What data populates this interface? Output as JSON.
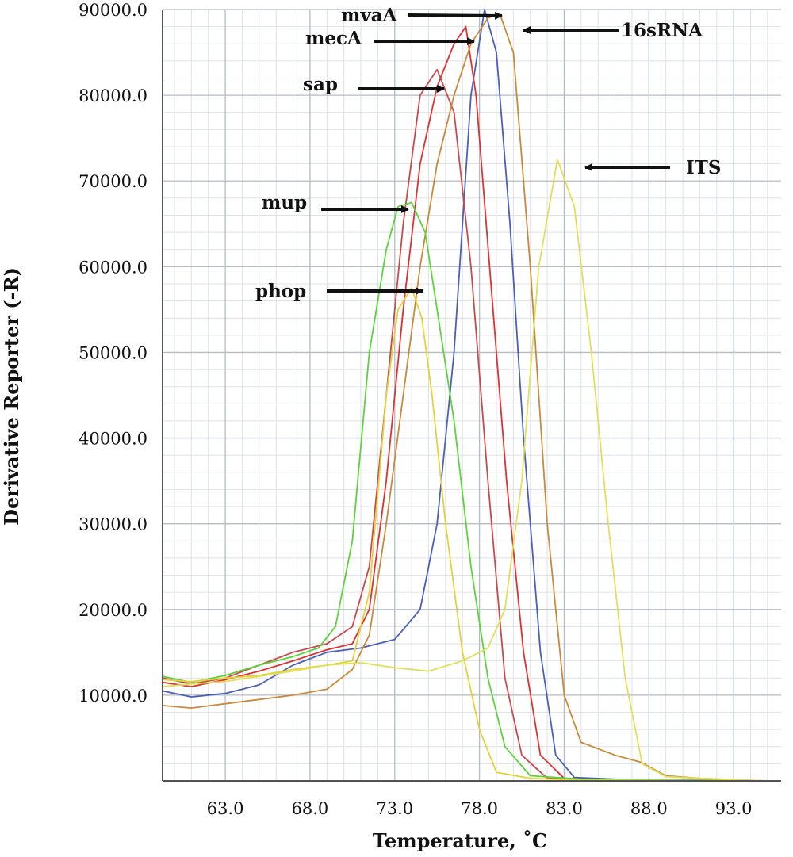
{
  "chart_data": {
    "type": "line",
    "xlabel": "Temperature, ˚C",
    "ylabel": "Derivative Reporter (-R)",
    "xlim": [
      59.3,
      95.8
    ],
    "ylim": [
      0,
      90000
    ],
    "x_ticks": [
      "63.0",
      "68.0",
      "73.0",
      "78.0",
      "83.0",
      "88.0",
      "93.0"
    ],
    "x_tick_values": [
      63,
      68,
      73,
      78,
      83,
      88,
      93
    ],
    "y_ticks": [
      "10000.0",
      "20000.0",
      "30000.0",
      "40000.0",
      "50000.0",
      "60000.0",
      "70000.0",
      "80000.0",
      "90000.0"
    ],
    "y_tick_values": [
      10000,
      20000,
      30000,
      40000,
      50000,
      60000,
      70000,
      80000,
      90000
    ],
    "grid": true,
    "series": [
      {
        "name": "mvaA",
        "color": "#4a5fb8",
        "points": [
          [
            59.3,
            10500
          ],
          [
            61,
            9800
          ],
          [
            63,
            10200
          ],
          [
            65,
            11200
          ],
          [
            67,
            13500
          ],
          [
            69,
            15000
          ],
          [
            71,
            15500
          ],
          [
            73,
            16500
          ],
          [
            74.5,
            20000
          ],
          [
            75.5,
            30000
          ],
          [
            76.5,
            50000
          ],
          [
            77.5,
            80000
          ],
          [
            78.3,
            90000
          ],
          [
            79,
            85000
          ],
          [
            79.8,
            65000
          ],
          [
            80.6,
            40000
          ],
          [
            81.6,
            15000
          ],
          [
            82.5,
            3000
          ],
          [
            83.6,
            400
          ],
          [
            86,
            200
          ],
          [
            95,
            0
          ]
        ]
      },
      {
        "name": "mecA",
        "color": "#e03030",
        "points": [
          [
            59.3,
            11500
          ],
          [
            61,
            11000
          ],
          [
            63,
            11800
          ],
          [
            65,
            12800
          ],
          [
            67,
            14000
          ],
          [
            69,
            15300
          ],
          [
            70.5,
            16000
          ],
          [
            71.5,
            20000
          ],
          [
            72.5,
            35000
          ],
          [
            73.5,
            55000
          ],
          [
            74.5,
            72000
          ],
          [
            75.5,
            81000
          ],
          [
            76.5,
            86000
          ],
          [
            77.2,
            88000
          ],
          [
            77.8,
            80000
          ],
          [
            78.6,
            60000
          ],
          [
            79.6,
            35000
          ],
          [
            80.6,
            15000
          ],
          [
            81.6,
            3000
          ],
          [
            83,
            300
          ],
          [
            86,
            100
          ],
          [
            95,
            0
          ]
        ]
      },
      {
        "name": "sap",
        "color": "#c84a4a",
        "points": [
          [
            59.3,
            12000
          ],
          [
            61,
            11300
          ],
          [
            63,
            12000
          ],
          [
            65,
            13500
          ],
          [
            67,
            15000
          ],
          [
            69,
            16000
          ],
          [
            70.5,
            18000
          ],
          [
            71.5,
            25000
          ],
          [
            72.5,
            45000
          ],
          [
            73.5,
            65000
          ],
          [
            74.5,
            80000
          ],
          [
            75.5,
            83000
          ],
          [
            76.5,
            78000
          ],
          [
            77.5,
            60000
          ],
          [
            78.5,
            35000
          ],
          [
            79.5,
            12000
          ],
          [
            80.5,
            3000
          ],
          [
            82,
            300
          ],
          [
            85,
            100
          ],
          [
            95,
            0
          ]
        ]
      },
      {
        "name": "16sRNA",
        "color": "#c88a3a",
        "points": [
          [
            59.3,
            8800
          ],
          [
            61,
            8500
          ],
          [
            63,
            9000
          ],
          [
            65,
            9500
          ],
          [
            67,
            10000
          ],
          [
            69,
            10700
          ],
          [
            70.5,
            13000
          ],
          [
            71.5,
            17000
          ],
          [
            72.5,
            30000
          ],
          [
            73.5,
            45000
          ],
          [
            74.5,
            60000
          ],
          [
            75.5,
            72000
          ],
          [
            76.5,
            80000
          ],
          [
            77.5,
            86000
          ],
          [
            78.5,
            89000
          ],
          [
            79.2,
            89500
          ],
          [
            80,
            85000
          ],
          [
            81,
            60000
          ],
          [
            82,
            30000
          ],
          [
            83,
            10000
          ],
          [
            84,
            4500
          ],
          [
            86,
            3000
          ],
          [
            87.5,
            2200
          ],
          [
            89,
            600
          ],
          [
            91,
            300
          ],
          [
            95,
            0
          ]
        ]
      },
      {
        "name": "mup",
        "color": "#5ad43a",
        "points": [
          [
            59.3,
            12200
          ],
          [
            61,
            11500
          ],
          [
            63,
            12300
          ],
          [
            65,
            13500
          ],
          [
            67,
            14500
          ],
          [
            68.5,
            15500
          ],
          [
            69.5,
            18000
          ],
          [
            70.5,
            28000
          ],
          [
            71.5,
            50000
          ],
          [
            72.5,
            62000
          ],
          [
            73.2,
            67000
          ],
          [
            74,
            67500
          ],
          [
            74.8,
            64000
          ],
          [
            75.5,
            55000
          ],
          [
            76.5,
            42000
          ],
          [
            77.5,
            25000
          ],
          [
            78.5,
            12000
          ],
          [
            79.5,
            4000
          ],
          [
            81,
            600
          ],
          [
            84,
            200
          ],
          [
            95,
            0
          ]
        ]
      },
      {
        "name": "phop",
        "color": "#e3d23a",
        "points": [
          [
            59.3,
            11800
          ],
          [
            61,
            11600
          ],
          [
            63,
            12000
          ],
          [
            65,
            12300
          ],
          [
            67,
            13000
          ],
          [
            69,
            13500
          ],
          [
            70.5,
            14000
          ],
          [
            71.5,
            22000
          ],
          [
            72.5,
            45000
          ],
          [
            73.2,
            55000
          ],
          [
            74,
            57500
          ],
          [
            74.6,
            54000
          ],
          [
            75.2,
            45000
          ],
          [
            76,
            30000
          ],
          [
            77,
            15000
          ],
          [
            78,
            6000
          ],
          [
            79,
            1000
          ],
          [
            81,
            300
          ],
          [
            84,
            100
          ],
          [
            95,
            0
          ]
        ]
      },
      {
        "name": "ITS",
        "color": "#e0e05a",
        "points": [
          [
            59.3,
            11000
          ],
          [
            61,
            11300
          ],
          [
            63,
            11600
          ],
          [
            65,
            12200
          ],
          [
            67,
            12800
          ],
          [
            69,
            13500
          ],
          [
            71,
            13800
          ],
          [
            73,
            13200
          ],
          [
            75,
            12800
          ],
          [
            77,
            14000
          ],
          [
            78.5,
            15500
          ],
          [
            79.5,
            20000
          ],
          [
            80.5,
            35000
          ],
          [
            81.5,
            60000
          ],
          [
            82.6,
            72500
          ],
          [
            83.6,
            67000
          ],
          [
            84.6,
            50000
          ],
          [
            85.6,
            30000
          ],
          [
            86.6,
            12000
          ],
          [
            87.6,
            2000
          ],
          [
            89,
            500
          ],
          [
            91,
            300
          ],
          [
            95,
            0
          ]
        ]
      }
    ],
    "annotations": [
      {
        "label": "mvaA",
        "x": 78.3,
        "y": 90000
      },
      {
        "label": "mecA",
        "x": 77.2,
        "y": 88000
      },
      {
        "label": "16sRNA",
        "x": 79.2,
        "y": 89500
      },
      {
        "label": "sap",
        "x": 75.5,
        "y": 83000
      },
      {
        "label": "ITS",
        "x": 82.6,
        "y": 72500
      },
      {
        "label": "mup",
        "x": 74.0,
        "y": 67500
      },
      {
        "label": "phop",
        "x": 74.0,
        "y": 57500
      }
    ]
  }
}
